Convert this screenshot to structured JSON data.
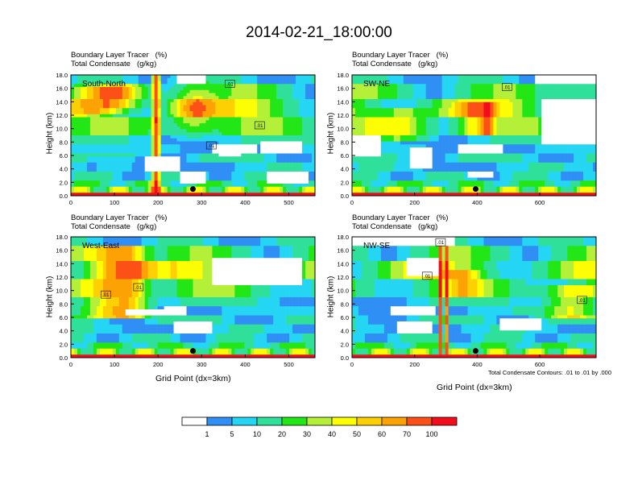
{
  "figure": {
    "title": "2014-02-21_18:00:00",
    "contour_note": "Total Condensate Contours: .01 to .01 by .000"
  },
  "colorbar": {
    "colors": [
      "#ffffff",
      "#2f8ff5",
      "#24d6f3",
      "#2fe09a",
      "#22e616",
      "#b4f038",
      "#fdfd04",
      "#fdd004",
      "#fda204",
      "#fb5016",
      "#f20d1c"
    ],
    "labels": [
      "1",
      "5",
      "10",
      "20",
      "30",
      "40",
      "50",
      "60",
      "70",
      "100"
    ]
  },
  "chart_data": [
    {
      "type": "heatmap",
      "panel": "South-North",
      "title_lines": [
        "Boundary Layer Tracer    (%)",
        "Total Condensate    (g/kg)"
      ],
      "title_field": "Boundary Layer Tracer",
      "title_units": "(%)",
      "subtitle_field": "Total Condensate",
      "subtitle_units": "(g/kg)",
      "ylabel": "Height (km)",
      "xlabel": "",
      "xlim": [
        0,
        560
      ],
      "ylim": [
        0,
        18
      ],
      "xticks": [
        0,
        100,
        200,
        300,
        400,
        500
      ],
      "yticks": [
        "0.0",
        "2.0",
        "4.0",
        "6.0",
        "8.0",
        "10.0",
        "12.0",
        "14.0",
        "16.0",
        "18.0"
      ],
      "marker_x": 280,
      "contour_labels": [
        {
          "text": ".01",
          "x": 365,
          "y": 16.7
        },
        {
          "text": ".01",
          "x": 322,
          "y": 7.5
        },
        {
          "text": ".01",
          "x": 433,
          "y": 10.5
        }
      ]
    },
    {
      "type": "heatmap",
      "panel": "SW-NE",
      "title_lines": [
        "Boundary Layer Tracer    (%)",
        "Total Condensate    (g/kg)"
      ],
      "title_field": "Boundary Layer Tracer",
      "title_units": "(%)",
      "subtitle_field": "Total Condensate",
      "subtitle_units": "(g/kg)",
      "ylabel": "Height (km)",
      "xlabel": "",
      "xlim": [
        0,
        780
      ],
      "ylim": [
        0,
        18
      ],
      "xticks": [
        0,
        200,
        400,
        600
      ],
      "yticks": [
        "0.0",
        "2.0",
        "4.0",
        "6.0",
        "8.0",
        "10.0",
        "12.0",
        "14.0",
        "16.0",
        "18.0"
      ],
      "marker_x": 395,
      "contour_labels": [
        {
          "text": ".01",
          "x": 495,
          "y": 16.2
        }
      ]
    },
    {
      "type": "heatmap",
      "panel": "West-East",
      "title_lines": [
        "Boundary Layer Tracer    (%)",
        "Total Condensate    (g/kg)"
      ],
      "title_field": "Boundary Layer Tracer",
      "title_units": "(%)",
      "subtitle_field": "Total Condensate",
      "subtitle_units": "(g/kg)",
      "ylabel": "Height (km)",
      "xlabel": "Grid Point (dx=3km)",
      "xlim": [
        0,
        560
      ],
      "ylim": [
        0,
        18
      ],
      "xticks": [
        0,
        100,
        200,
        300,
        400,
        500
      ],
      "yticks": [
        "0.0",
        "2.0",
        "4.0",
        "6.0",
        "8.0",
        "10.0",
        "12.0",
        "14.0",
        "16.0",
        "18.0"
      ],
      "marker_x": 280,
      "contour_labels": [
        {
          "text": ".01",
          "x": 155,
          "y": 10.5
        },
        {
          "text": ".01",
          "x": 80,
          "y": 9.4
        }
      ]
    },
    {
      "type": "heatmap",
      "panel": "NW-SE",
      "title_lines": [
        "Boundary Layer Tracer    (%)",
        "Total Condensate    (g/kg)"
      ],
      "title_field": "Boundary Layer Tracer",
      "title_units": "(%)",
      "subtitle_field": "Total Condensate",
      "subtitle_units": "(g/kg)",
      "ylabel": "Height (km)",
      "xlabel": "Grid Point (dx=3km)",
      "xlim": [
        0,
        780
      ],
      "ylim": [
        0,
        18
      ],
      "xticks": [
        0,
        200,
        400,
        600
      ],
      "yticks": [
        "0.0",
        "2.0",
        "4.0",
        "6.0",
        "8.0",
        "10.0",
        "12.0",
        "14.0",
        "16.0",
        "18.0"
      ],
      "marker_x": 395,
      "contour_labels": [
        {
          "text": ".01",
          "x": 283,
          "y": 17.2
        },
        {
          "text": ".01",
          "x": 240,
          "y": 12.2
        },
        {
          "text": ".01",
          "x": 735,
          "y": 8.6
        }
      ]
    }
  ]
}
